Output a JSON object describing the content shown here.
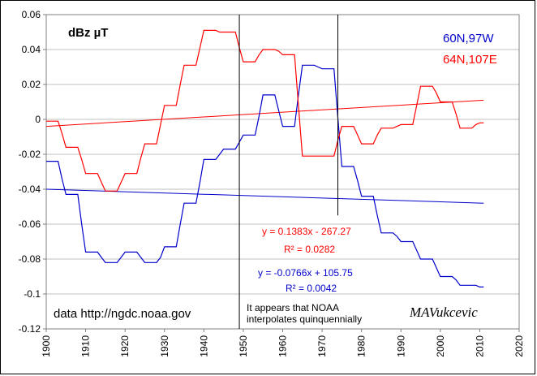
{
  "chart_data": {
    "type": "line",
    "title": "",
    "unit_label": "dBz µT",
    "xlabel": "",
    "ylabel": "",
    "xlim": [
      1900,
      2020
    ],
    "ylim": [
      -0.12,
      0.06
    ],
    "x_ticks": [
      "1900",
      "1910",
      "1920",
      "1930",
      "1940",
      "1950",
      "1960",
      "1970",
      "1980",
      "1990",
      "2000",
      "2010",
      "2020"
    ],
    "y_ticks": [
      "0.06",
      "0.04",
      "0.02",
      "0",
      "-0.02",
      "-0.04",
      "-0.06",
      "-0.08",
      "-0.1",
      "-0.12"
    ],
    "grid": true,
    "legend_position": "top-right",
    "series": [
      {
        "name": "60N,97W",
        "color": "#0000cc",
        "style": "step",
        "x": [
          1900,
          1901,
          1902,
          1903,
          1904,
          1905,
          1906,
          1907,
          1908,
          1909,
          1910,
          1911,
          1912,
          1913,
          1914,
          1915,
          1916,
          1917,
          1918,
          1919,
          1920,
          1921,
          1922,
          1923,
          1924,
          1925,
          1926,
          1927,
          1928,
          1929,
          1930,
          1931,
          1932,
          1933,
          1934,
          1935,
          1936,
          1937,
          1938,
          1939,
          1940,
          1941,
          1942,
          1943,
          1944,
          1945,
          1946,
          1947,
          1948,
          1949,
          1950,
          1951,
          1952,
          1953,
          1954,
          1955,
          1956,
          1957,
          1958,
          1959,
          1960,
          1961,
          1962,
          1963,
          1964,
          1965,
          1966,
          1967,
          1968,
          1969,
          1970,
          1971,
          1972,
          1973,
          1974,
          1975,
          1976,
          1977,
          1978,
          1979,
          1980,
          1981,
          1982,
          1983,
          1984,
          1985,
          1986,
          1987,
          1988,
          1989,
          1990,
          1991,
          1992,
          1993,
          1994,
          1995,
          1996,
          1997,
          1998,
          1999,
          2000,
          2001,
          2002,
          2003,
          2004,
          2005,
          2006,
          2007,
          2008,
          2009,
          2010,
          2011
        ],
        "y": [
          -0.024,
          -0.024,
          -0.024,
          -0.024,
          -0.034,
          -0.043,
          -0.043,
          -0.043,
          -0.043,
          -0.06,
          -0.076,
          -0.076,
          -0.076,
          -0.076,
          -0.079,
          -0.082,
          -0.082,
          -0.082,
          -0.082,
          -0.079,
          -0.076,
          -0.076,
          -0.076,
          -0.076,
          -0.079,
          -0.082,
          -0.082,
          -0.082,
          -0.082,
          -0.079,
          -0.073,
          -0.073,
          -0.073,
          -0.073,
          -0.06,
          -0.048,
          -0.048,
          -0.048,
          -0.048,
          -0.036,
          -0.023,
          -0.023,
          -0.023,
          -0.023,
          -0.02,
          -0.017,
          -0.017,
          -0.017,
          -0.017,
          -0.013,
          -0.009,
          -0.009,
          -0.009,
          -0.009,
          0.002,
          0.014,
          0.014,
          0.014,
          0.014,
          0.005,
          -0.004,
          -0.004,
          -0.004,
          -0.004,
          0.014,
          0.031,
          0.031,
          0.031,
          0.031,
          0.03,
          0.029,
          0.029,
          0.029,
          0.029,
          0.001,
          -0.027,
          -0.027,
          -0.027,
          -0.027,
          -0.035,
          -0.044,
          -0.044,
          -0.044,
          -0.044,
          -0.055,
          -0.065,
          -0.065,
          -0.065,
          -0.065,
          -0.067,
          -0.07,
          -0.07,
          -0.07,
          -0.07,
          -0.075,
          -0.08,
          -0.08,
          -0.08,
          -0.08,
          -0.085,
          -0.09,
          -0.09,
          -0.09,
          -0.09,
          -0.092,
          -0.095,
          -0.095,
          -0.095,
          -0.095,
          -0.095,
          -0.096,
          -0.096
        ],
        "trend_label": "y = -0.0766x + 105.75",
        "r2_label": "R² = 0.0042",
        "trend_y": [
          -0.04,
          -0.048
        ]
      },
      {
        "name": "64N,107E",
        "color": "#ff0000",
        "style": "step",
        "x": [
          1900,
          1901,
          1902,
          1903,
          1904,
          1905,
          1906,
          1907,
          1908,
          1909,
          1910,
          1911,
          1912,
          1913,
          1914,
          1915,
          1916,
          1917,
          1918,
          1919,
          1920,
          1921,
          1922,
          1923,
          1924,
          1925,
          1926,
          1927,
          1928,
          1929,
          1930,
          1931,
          1932,
          1933,
          1934,
          1935,
          1936,
          1937,
          1938,
          1939,
          1940,
          1941,
          1942,
          1943,
          1944,
          1945,
          1946,
          1947,
          1948,
          1949,
          1950,
          1951,
          1952,
          1953,
          1954,
          1955,
          1956,
          1957,
          1958,
          1959,
          1960,
          1961,
          1962,
          1963,
          1964,
          1965,
          1966,
          1967,
          1968,
          1969,
          1970,
          1971,
          1972,
          1973,
          1974,
          1975,
          1976,
          1977,
          1978,
          1979,
          1980,
          1981,
          1982,
          1983,
          1984,
          1985,
          1986,
          1987,
          1988,
          1989,
          1990,
          1991,
          1992,
          1993,
          1994,
          1995,
          1996,
          1997,
          1998,
          1999,
          2000,
          2001,
          2002,
          2003,
          2004,
          2005,
          2006,
          2007,
          2008,
          2009,
          2010,
          2011
        ],
        "y": [
          -0.001,
          -0.001,
          -0.001,
          -0.001,
          -0.008,
          -0.016,
          -0.016,
          -0.016,
          -0.016,
          -0.023,
          -0.031,
          -0.031,
          -0.031,
          -0.031,
          -0.036,
          -0.041,
          -0.041,
          -0.041,
          -0.041,
          -0.036,
          -0.031,
          -0.031,
          -0.031,
          -0.031,
          -0.022,
          -0.014,
          -0.014,
          -0.014,
          -0.014,
          -0.003,
          0.008,
          0.008,
          0.008,
          0.008,
          0.02,
          0.031,
          0.031,
          0.031,
          0.031,
          0.041,
          0.051,
          0.051,
          0.051,
          0.051,
          0.05,
          0.05,
          0.05,
          0.05,
          0.05,
          0.041,
          0.033,
          0.033,
          0.033,
          0.033,
          0.037,
          0.04,
          0.04,
          0.04,
          0.04,
          0.039,
          0.037,
          0.037,
          0.037,
          0.037,
          0.008,
          -0.021,
          -0.021,
          -0.021,
          -0.021,
          -0.021,
          -0.021,
          -0.021,
          -0.021,
          -0.021,
          -0.012,
          -0.004,
          -0.004,
          -0.004,
          -0.004,
          -0.009,
          -0.014,
          -0.014,
          -0.014,
          -0.014,
          -0.009,
          -0.005,
          -0.005,
          -0.005,
          -0.005,
          -0.004,
          -0.003,
          -0.003,
          -0.003,
          -0.003,
          0.008,
          0.019,
          0.019,
          0.019,
          0.019,
          0.015,
          0.01,
          0.01,
          0.01,
          0.01,
          0.003,
          -0.005,
          -0.005,
          -0.005,
          -0.005,
          -0.003,
          -0.002,
          -0.002
        ],
        "trend_label": "y = 0.1383x - 267.27",
        "r2_label": "R² = 0.0282",
        "trend_y": [
          -0.004,
          0.011
        ]
      }
    ],
    "vertical_markers": [
      {
        "x": 1949,
        "y_top": 0.06,
        "y_bottom": -0.12
      },
      {
        "x": 1974,
        "y_top": 0.06,
        "y_bottom": -0.055
      }
    ],
    "annotations": {
      "data_source": "data   http://ngdc.noaa.gov",
      "note_line1": "It appears that NOAA",
      "note_line2": "interpolates quinquennially",
      "signature": "MAVukcevic"
    }
  }
}
